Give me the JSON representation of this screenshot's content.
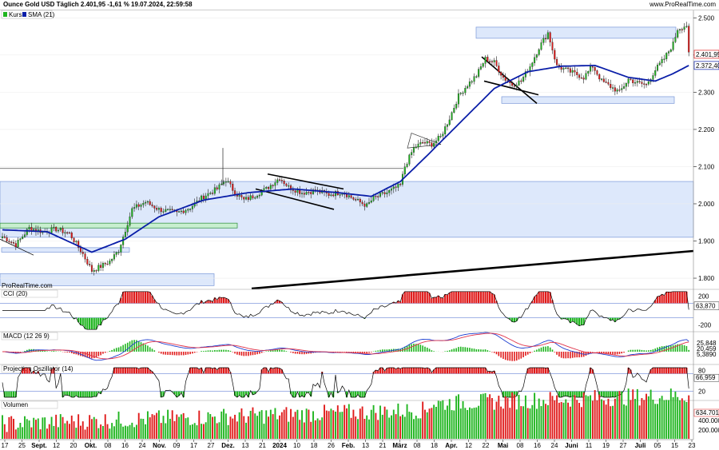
{
  "header": {
    "title": "Ounce Gold USD Täglich 2.401,95 -1,61 % 19.07.2024, 22:59:58",
    "url": "www.ProRealTime.com"
  },
  "watermark": "ProRealTime.com",
  "legend": {
    "kurs": "Kurs",
    "sma": "SMA (21)"
  },
  "price_axis": {
    "ticks": [
      "2.500",
      "2.400",
      "2.300",
      "2.200",
      "2.100",
      "2.000",
      "1.900",
      "1.800"
    ],
    "last_price": "2.401,95",
    "sma_value": "2.372,40"
  },
  "panels": {
    "cci": {
      "label": "CCI (20)",
      "ticks": [
        "200",
        "-200"
      ],
      "value": "63,870"
    },
    "macd": {
      "label": "MACD (12 26 9)",
      "values": [
        "25,848",
        "20,459",
        "5,3890"
      ]
    },
    "proj": {
      "label": "Projection Oszillator (14)",
      "ticks": [
        "80",
        "20"
      ],
      "value": "66,959"
    },
    "vol": {
      "label": "Volumen",
      "ticks": [
        "400.000",
        "200.000"
      ],
      "value": "634.701"
    }
  },
  "x_axis": [
    {
      "label": "17",
      "b": false
    },
    {
      "label": "25",
      "b": false
    },
    {
      "label": "Sept.",
      "b": true
    },
    {
      "label": "12",
      "b": false
    },
    {
      "label": "20",
      "b": false
    },
    {
      "label": "Okt.",
      "b": true
    },
    {
      "label": "08",
      "b": false
    },
    {
      "label": "16",
      "b": false
    },
    {
      "label": "24",
      "b": false
    },
    {
      "label": "Nov.",
      "b": true
    },
    {
      "label": "09",
      "b": false
    },
    {
      "label": "17",
      "b": false
    },
    {
      "label": "27",
      "b": false
    },
    {
      "label": "Dez.",
      "b": true
    },
    {
      "label": "13",
      "b": false
    },
    {
      "label": "21",
      "b": false
    },
    {
      "label": "2024",
      "b": true
    },
    {
      "label": "10",
      "b": false
    },
    {
      "label": "18",
      "b": false
    },
    {
      "label": "26",
      "b": false
    },
    {
      "label": "Feb.",
      "b": true
    },
    {
      "label": "13",
      "b": false
    },
    {
      "label": "21",
      "b": false
    },
    {
      "label": "März",
      "b": true
    },
    {
      "label": "08",
      "b": false
    },
    {
      "label": "18",
      "b": false
    },
    {
      "label": "Apr.",
      "b": true
    },
    {
      "label": "12",
      "b": false
    },
    {
      "label": "22",
      "b": false
    },
    {
      "label": "Mai",
      "b": true
    },
    {
      "label": "08",
      "b": false
    },
    {
      "label": "16",
      "b": false
    },
    {
      "label": "24",
      "b": false
    },
    {
      "label": "Juni",
      "b": true
    },
    {
      "label": "11",
      "b": false
    },
    {
      "label": "19",
      "b": false
    },
    {
      "label": "27",
      "b": false
    },
    {
      "label": "Juli",
      "b": true
    },
    {
      "label": "05",
      "b": false
    },
    {
      "label": "15",
      "b": false
    },
    {
      "label": "23",
      "b": false
    }
  ],
  "colors": {
    "up": "#1fb51f",
    "down": "#e01b1b",
    "sma": "#0a1ea8",
    "zone_fill": "#dde8fb",
    "zone_stroke": "#7a98d8",
    "green_zone": "#c8efcf",
    "cci_line": "#000000",
    "macd_line": "#1f3fd0",
    "signal_line": "#e0334a"
  },
  "chart_data": {
    "type": "candlestick",
    "y_range": [
      1770,
      2520
    ],
    "anchors": [
      [
        0,
        1912
      ],
      [
        6,
        1890
      ],
      [
        12,
        1935
      ],
      [
        18,
        1925
      ],
      [
        24,
        1932
      ],
      [
        30,
        1920
      ],
      [
        36,
        1865
      ],
      [
        40,
        1820
      ],
      [
        44,
        1832
      ],
      [
        48,
        1845
      ],
      [
        52,
        1875
      ],
      [
        58,
        1985
      ],
      [
        64,
        2005
      ],
      [
        70,
        1985
      ],
      [
        78,
        1975
      ],
      [
        84,
        1990
      ],
      [
        90,
        2020
      ],
      [
        96,
        2040
      ],
      [
        100,
        2065
      ],
      [
        104,
        2030
      ],
      [
        108,
        2010
      ],
      [
        112,
        2020
      ],
      [
        118,
        2040
      ],
      [
        124,
        2070
      ],
      [
        128,
        2045
      ],
      [
        134,
        2030
      ],
      [
        140,
        2035
      ],
      [
        146,
        2025
      ],
      [
        152,
        2032
      ],
      [
        158,
        2010
      ],
      [
        163,
        1995
      ],
      [
        166,
        2015
      ],
      [
        172,
        2030
      ],
      [
        178,
        2050
      ],
      [
        180,
        2100
      ],
      [
        184,
        2150
      ],
      [
        188,
        2165
      ],
      [
        192,
        2160
      ],
      [
        196,
        2180
      ],
      [
        200,
        2230
      ],
      [
        204,
        2290
      ],
      [
        208,
        2320
      ],
      [
        212,
        2345
      ],
      [
        216,
        2390
      ],
      [
        220,
        2380
      ],
      [
        224,
        2340
      ],
      [
        228,
        2320
      ],
      [
        232,
        2330
      ],
      [
        236,
        2370
      ],
      [
        240,
        2420
      ],
      [
        244,
        2460
      ],
      [
        248,
        2370
      ],
      [
        252,
        2360
      ],
      [
        256,
        2350
      ],
      [
        260,
        2340
      ],
      [
        264,
        2370
      ],
      [
        268,
        2330
      ],
      [
        272,
        2315
      ],
      [
        276,
        2300
      ],
      [
        280,
        2335
      ],
      [
        284,
        2325
      ],
      [
        288,
        2320
      ],
      [
        292,
        2360
      ],
      [
        296,
        2390
      ],
      [
        300,
        2430
      ],
      [
        302,
        2470
      ],
      [
        306,
        2480
      ],
      [
        307,
        2401
      ]
    ],
    "sma_anchors": [
      [
        0,
        1930
      ],
      [
        20,
        1925
      ],
      [
        40,
        1870
      ],
      [
        55,
        1905
      ],
      [
        70,
        1965
      ],
      [
        90,
        2010
      ],
      [
        110,
        2030
      ],
      [
        130,
        2040
      ],
      [
        150,
        2030
      ],
      [
        165,
        2020
      ],
      [
        178,
        2060
      ],
      [
        190,
        2130
      ],
      [
        205,
        2220
      ],
      [
        220,
        2310
      ],
      [
        235,
        2355
      ],
      [
        250,
        2370
      ],
      [
        265,
        2372
      ],
      [
        280,
        2340
      ],
      [
        292,
        2330
      ],
      [
        300,
        2350
      ],
      [
        307,
        2372
      ]
    ]
  }
}
